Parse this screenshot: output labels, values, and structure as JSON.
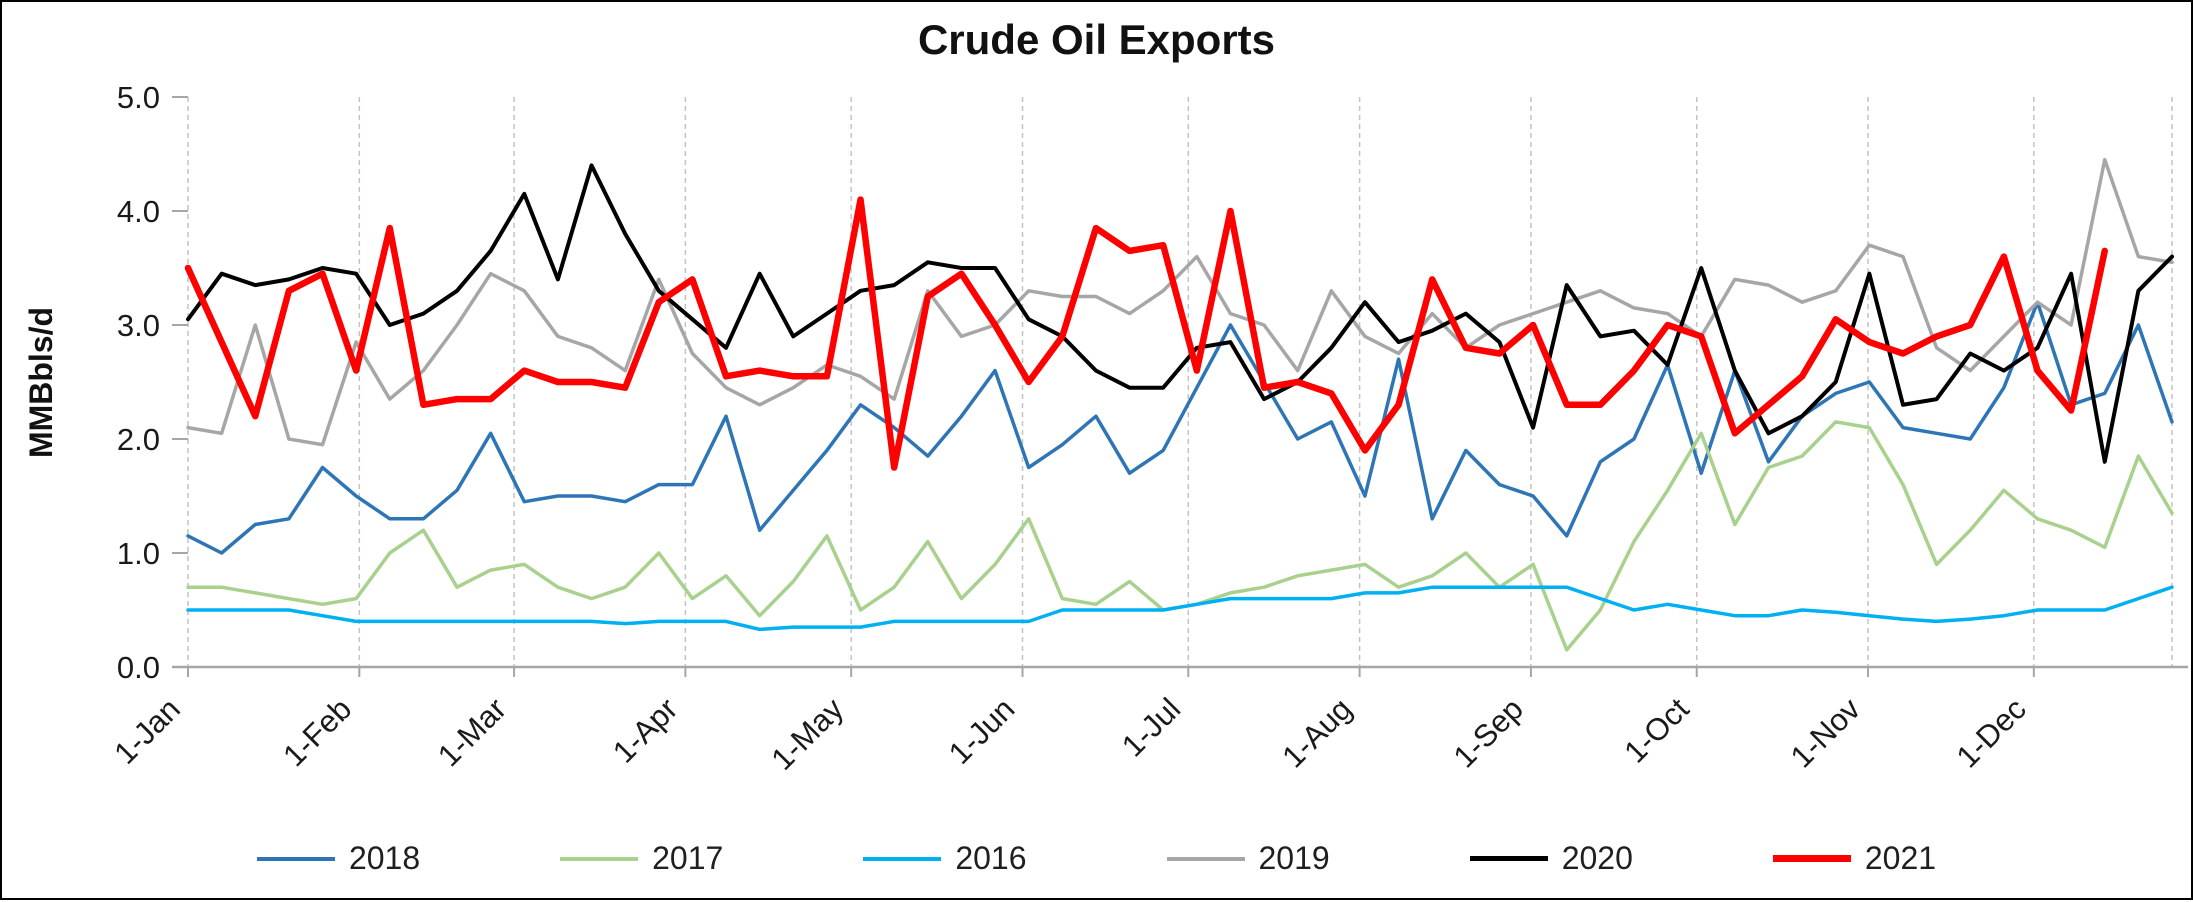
{
  "title": "Crude Oil Exports",
  "y_axis": {
    "label": "MMBbls/d",
    "ticks": [
      {
        "label": "5.0",
        "value": 5
      },
      {
        "label": "4.0",
        "value": 4
      },
      {
        "label": "3.0",
        "value": 3
      },
      {
        "label": "2.0",
        "value": 2
      },
      {
        "label": "1.0",
        "value": 1
      },
      {
        "label": "0.0",
        "value": 0
      }
    ]
  },
  "x_axis": {
    "ticks": [
      {
        "label": "1-Jan",
        "doy": 0
      },
      {
        "label": "1-Feb",
        "doy": 31
      },
      {
        "label": "1-Mar",
        "doy": 59
      },
      {
        "label": "1-Apr",
        "doy": 90
      },
      {
        "label": "1-May",
        "doy": 120
      },
      {
        "label": "1-Jun",
        "doy": 151
      },
      {
        "label": "1-Jul",
        "doy": 181
      },
      {
        "label": "1-Aug",
        "doy": 212
      },
      {
        "label": "1-Sep",
        "doy": 243
      },
      {
        "label": "1-Oct",
        "doy": 273
      },
      {
        "label": "1-Nov",
        "doy": 304
      },
      {
        "label": "1-Dec",
        "doy": 334
      }
    ]
  },
  "chart_data": {
    "type": "line",
    "title": "Crude Oil Exports",
    "ylabel": "MMBbls/d",
    "ylim": [
      0,
      5
    ],
    "grid": "vertical-dashed",
    "legend_position": "bottom",
    "x_tick_labels": [
      "1-Jan",
      "1-Feb",
      "1-Mar",
      "1-Apr",
      "1-May",
      "1-Jun",
      "1-Jul",
      "1-Aug",
      "1-Sep",
      "1-Oct",
      "1-Nov",
      "1-Dec"
    ],
    "series": [
      {
        "name": "2018",
        "color": "#2E75B6",
        "stroke_width": 3.5,
        "values": [
          1.15,
          1.0,
          1.25,
          1.3,
          1.75,
          1.5,
          1.3,
          1.3,
          1.55,
          2.05,
          1.45,
          1.5,
          1.5,
          1.45,
          1.6,
          1.6,
          2.2,
          1.2,
          1.55,
          1.9,
          2.3,
          2.1,
          1.85,
          2.2,
          2.6,
          1.75,
          1.95,
          2.2,
          1.7,
          1.9,
          2.45,
          3.0,
          2.5,
          2.0,
          2.15,
          1.5,
          2.7,
          1.3,
          1.9,
          1.6,
          1.5,
          1.15,
          1.8,
          2.0,
          2.65,
          1.7,
          2.6,
          1.8,
          2.2,
          2.4,
          2.5,
          2.1,
          2.05,
          2.0,
          2.45,
          3.2,
          2.3,
          2.4,
          3.0,
          2.15
        ]
      },
      {
        "name": "2017",
        "color": "#A9D18E",
        "stroke_width": 3.5,
        "values": [
          0.7,
          0.7,
          0.65,
          0.6,
          0.55,
          0.6,
          1.0,
          1.2,
          0.7,
          0.85,
          0.9,
          0.7,
          0.6,
          0.7,
          1.0,
          0.6,
          0.8,
          0.45,
          0.75,
          1.15,
          0.5,
          0.7,
          1.1,
          0.6,
          0.9,
          1.3,
          0.6,
          0.55,
          0.75,
          0.5,
          0.55,
          0.65,
          0.7,
          0.8,
          0.85,
          0.9,
          0.7,
          0.8,
          1.0,
          0.7,
          0.9,
          0.15,
          0.5,
          1.1,
          1.55,
          2.05,
          1.25,
          1.75,
          1.85,
          2.15,
          2.1,
          1.6,
          0.9,
          1.2,
          1.55,
          1.3,
          1.2,
          1.05,
          1.85,
          1.35
        ]
      },
      {
        "name": "2016",
        "color": "#00B0F0",
        "stroke_width": 3.5,
        "values": [
          0.5,
          0.5,
          0.5,
          0.5,
          0.45,
          0.4,
          0.4,
          0.4,
          0.4,
          0.4,
          0.4,
          0.4,
          0.4,
          0.38,
          0.4,
          0.4,
          0.4,
          0.33,
          0.35,
          0.35,
          0.35,
          0.4,
          0.4,
          0.4,
          0.4,
          0.4,
          0.5,
          0.5,
          0.5,
          0.5,
          0.55,
          0.6,
          0.6,
          0.6,
          0.6,
          0.65,
          0.65,
          0.7,
          0.7,
          0.7,
          0.7,
          0.7,
          0.6,
          0.5,
          0.55,
          0.5,
          0.45,
          0.45,
          0.5,
          0.48,
          0.45,
          0.42,
          0.4,
          0.42,
          0.45,
          0.5,
          0.5,
          0.5,
          0.6,
          0.7
        ]
      },
      {
        "name": "2019",
        "color": "#A6A6A6",
        "stroke_width": 3.5,
        "values": [
          2.1,
          2.05,
          3.0,
          2.0,
          1.95,
          2.85,
          2.35,
          2.6,
          3.0,
          3.45,
          3.3,
          2.9,
          2.8,
          2.6,
          3.4,
          2.75,
          2.45,
          2.3,
          2.45,
          2.65,
          2.55,
          2.35,
          3.3,
          2.9,
          3.0,
          3.3,
          3.25,
          3.25,
          3.1,
          3.3,
          3.6,
          3.1,
          3.0,
          2.6,
          3.3,
          2.9,
          2.75,
          3.1,
          2.8,
          3.0,
          3.1,
          3.2,
          3.3,
          3.15,
          3.1,
          2.9,
          3.4,
          3.35,
          3.2,
          3.3,
          3.7,
          3.6,
          2.8,
          2.6,
          2.9,
          3.2,
          3.0,
          4.45,
          3.6,
          3.55
        ]
      },
      {
        "name": "2020",
        "color": "#000000",
        "stroke_width": 4,
        "values": [
          3.05,
          3.45,
          3.35,
          3.4,
          3.5,
          3.45,
          3.0,
          3.1,
          3.3,
          3.65,
          4.15,
          3.4,
          4.4,
          3.8,
          3.3,
          3.05,
          2.8,
          3.45,
          2.9,
          3.1,
          3.3,
          3.35,
          3.55,
          3.5,
          3.5,
          3.05,
          2.9,
          2.6,
          2.45,
          2.45,
          2.8,
          2.85,
          2.35,
          2.5,
          2.8,
          3.2,
          2.85,
          2.95,
          3.1,
          2.85,
          2.1,
          3.35,
          2.9,
          2.95,
          2.65,
          3.5,
          2.6,
          2.05,
          2.2,
          2.5,
          3.45,
          2.3,
          2.35,
          2.75,
          2.6,
          2.8,
          3.45,
          1.8,
          3.3,
          3.6
        ]
      },
      {
        "name": "2021",
        "color": "#FF0000",
        "stroke_width": 6.5,
        "values": [
          3.5,
          2.85,
          2.2,
          3.3,
          3.45,
          2.6,
          3.85,
          2.3,
          2.35,
          2.35,
          2.6,
          2.5,
          2.5,
          2.45,
          3.2,
          3.4,
          2.55,
          2.6,
          2.55,
          2.55,
          4.1,
          1.75,
          3.25,
          3.45,
          3.0,
          2.5,
          2.9,
          3.85,
          3.65,
          3.7,
          2.6,
          4.0,
          2.45,
          2.5,
          2.4,
          1.9,
          2.3,
          3.4,
          2.8,
          2.75,
          3.0,
          2.3,
          2.3,
          2.6,
          3.0,
          2.9,
          2.05,
          2.3,
          2.55,
          3.05,
          2.85,
          2.75,
          2.9,
          3.0,
          3.6,
          2.6,
          2.25,
          3.65,
          null,
          null
        ]
      }
    ]
  }
}
